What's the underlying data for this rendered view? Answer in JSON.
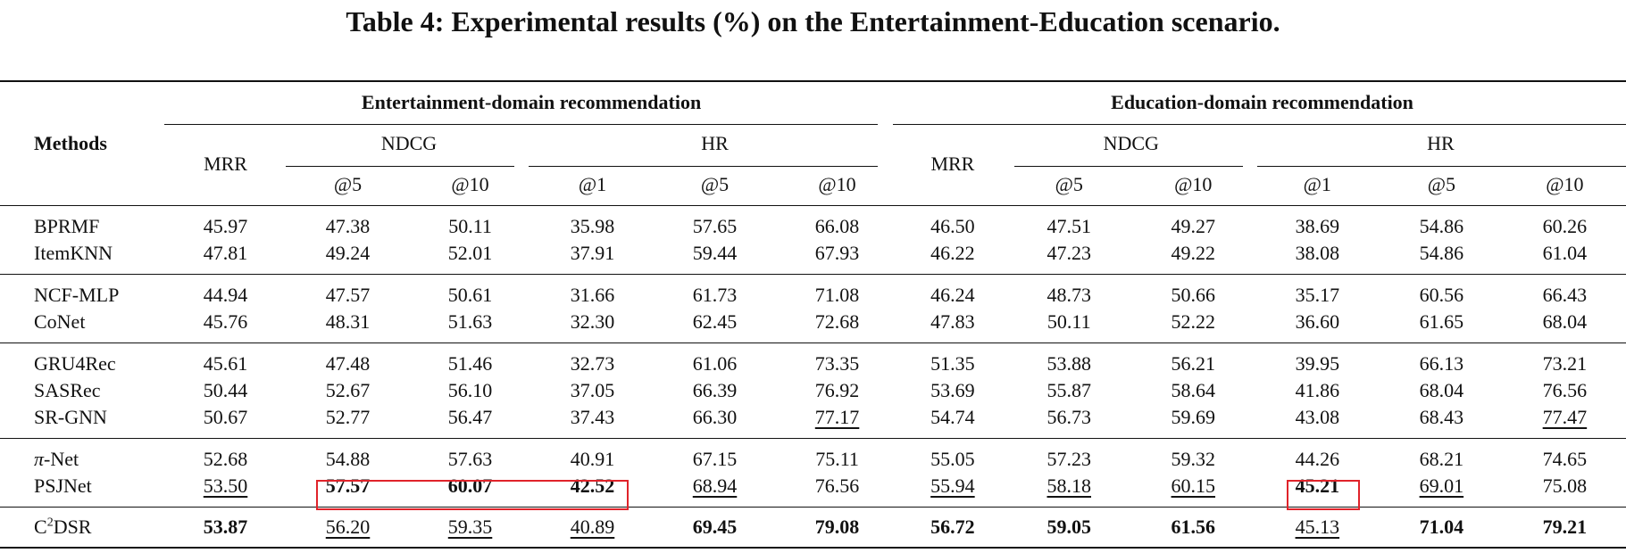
{
  "caption": "Table 4: Experimental results (%) on the Entertainment-Education scenario.",
  "header": {
    "methods": "Methods",
    "group_ent": "Entertainment-domain recommendation",
    "group_edu": "Education-domain recommendation",
    "mrr": "MRR",
    "ndcg": "NDCG",
    "hr": "HR",
    "at5": "@5",
    "at10": "@10",
    "at1": "@1"
  },
  "rows": [
    {
      "method": "BPRMF",
      "values": [
        "45.97",
        "47.38",
        "50.11",
        "35.98",
        "57.65",
        "66.08",
        "46.50",
        "47.51",
        "49.27",
        "38.69",
        "54.86",
        "60.26"
      ]
    },
    {
      "method": "ItemKNN",
      "values": [
        "47.81",
        "49.24",
        "52.01",
        "37.91",
        "59.44",
        "67.93",
        "46.22",
        "47.23",
        "49.22",
        "38.08",
        "54.86",
        "61.04"
      ]
    },
    {
      "method": "NCF-MLP",
      "values": [
        "44.94",
        "47.57",
        "50.61",
        "31.66",
        "61.73",
        "71.08",
        "46.24",
        "48.73",
        "50.66",
        "35.17",
        "60.56",
        "66.43"
      ]
    },
    {
      "method": "CoNet",
      "values": [
        "45.76",
        "48.31",
        "51.63",
        "32.30",
        "62.45",
        "72.68",
        "47.83",
        "50.11",
        "52.22",
        "36.60",
        "61.65",
        "68.04"
      ]
    },
    {
      "method": "GRU4Rec",
      "values": [
        "45.61",
        "47.48",
        "51.46",
        "32.73",
        "61.06",
        "73.35",
        "51.35",
        "53.88",
        "56.21",
        "39.95",
        "66.13",
        "73.21"
      ]
    },
    {
      "method": "SASRec",
      "values": [
        "50.44",
        "52.67",
        "56.10",
        "37.05",
        "66.39",
        "76.92",
        "53.69",
        "55.87",
        "58.64",
        "41.86",
        "68.04",
        "76.56"
      ]
    },
    {
      "method": "SR-GNN",
      "values": [
        "50.67",
        "52.77",
        "56.47",
        "37.43",
        "66.30",
        "77.17",
        "54.74",
        "56.73",
        "59.69",
        "43.08",
        "68.43",
        "77.47"
      ]
    },
    {
      "method_sym": "π",
      "method": "-Net",
      "values": [
        "52.68",
        "54.88",
        "57.63",
        "40.91",
        "67.15",
        "75.11",
        "55.05",
        "57.23",
        "59.32",
        "44.26",
        "68.21",
        "74.65"
      ]
    },
    {
      "method": "PSJNet",
      "values": [
        "53.50",
        "57.57",
        "60.07",
        "42.52",
        "68.94",
        "76.56",
        "55.94",
        "58.18",
        "60.15",
        "45.21",
        "69.01",
        "75.08"
      ]
    },
    {
      "method_pre": "C",
      "method_sup": "2",
      "method": "DSR",
      "values": [
        "53.87",
        "56.20",
        "59.35",
        "40.89",
        "69.45",
        "79.08",
        "56.72",
        "59.05",
        "61.56",
        "45.13",
        "71.04",
        "79.21"
      ]
    }
  ]
}
